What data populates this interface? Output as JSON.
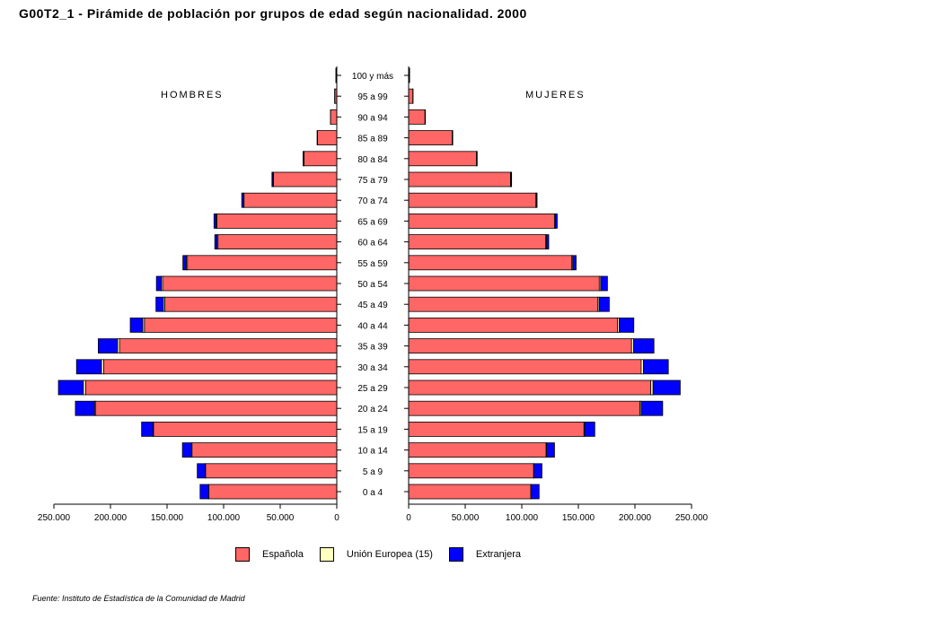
{
  "chart_data": {
    "type": "bar",
    "title": "G00T2_1 - Pirámide de población por grupos de edad según nacionalidad.  2000",
    "left_label": "HOMBRES",
    "right_label": "MUJERES",
    "source": "Fuente: Instituto de Estadística de la Comunidad de Madrid",
    "categories": [
      "100 y más",
      "95 a 99",
      "90 a 94",
      "85 a 89",
      "80 a 84",
      "75 a 79",
      "70 a 74",
      "65 a 69",
      "60 a 64",
      "55 a 59",
      "50 a 54",
      "45 a 49",
      "40 a 44",
      "35 a 39",
      "30 a 34",
      "25 a 29",
      "20 a 24",
      "15 a 19",
      "10 a 14",
      "5 a 9",
      "0 a 4"
    ],
    "xlim": [
      0,
      250000
    ],
    "ticks": [
      0,
      50000,
      100000,
      150000,
      200000,
      250000
    ],
    "tick_labels": [
      "0",
      "50.000",
      "100.000",
      "150.000",
      "200.000",
      "250.000"
    ],
    "series_names": [
      "Española",
      "Unión Europea (15)",
      "Extranjera"
    ],
    "colors": {
      "Española": "#ff6666",
      "Unión Europea (15)": "#ffffc0",
      "Extranjera": "#0000ff"
    },
    "hombres": {
      "Española": [
        700,
        1800,
        5500,
        17000,
        29000,
        56000,
        82000,
        106000,
        105000,
        132000,
        154000,
        152000,
        170000,
        192000,
        206000,
        222000,
        213000,
        162000,
        128000,
        116000,
        113000
      ],
      "Unión Europea (15)": [
        0,
        0,
        0,
        200,
        300,
        500,
        500,
        800,
        800,
        1000,
        1200,
        1300,
        1500,
        1800,
        2000,
        2000,
        1000,
        500,
        400,
        300,
        300
      ],
      "Extranjera": [
        0,
        0,
        0,
        200,
        500,
        800,
        1500,
        1700,
        2000,
        3000,
        4200,
        6500,
        11000,
        17000,
        22000,
        22000,
        17000,
        10000,
        8000,
        7000,
        7500
      ]
    },
    "mujeres": {
      "Española": [
        800,
        3800,
        14500,
        38500,
        60000,
        90000,
        112500,
        129000,
        121000,
        144000,
        168500,
        167000,
        184500,
        197000,
        205500,
        214000,
        204500,
        155000,
        121500,
        110500,
        108000
      ],
      "Unión Europea (15)": [
        0,
        0,
        0,
        200,
        300,
        500,
        500,
        800,
        800,
        1000,
        1200,
        1300,
        1500,
        1800,
        2000,
        2000,
        1000,
        500,
        400,
        300,
        300
      ],
      "Extranjera": [
        0,
        0,
        300,
        300,
        300,
        500,
        500,
        1500,
        2000,
        3000,
        6000,
        9000,
        13000,
        18000,
        22000,
        24000,
        19000,
        9000,
        7000,
        7000,
        7000
      ]
    }
  }
}
